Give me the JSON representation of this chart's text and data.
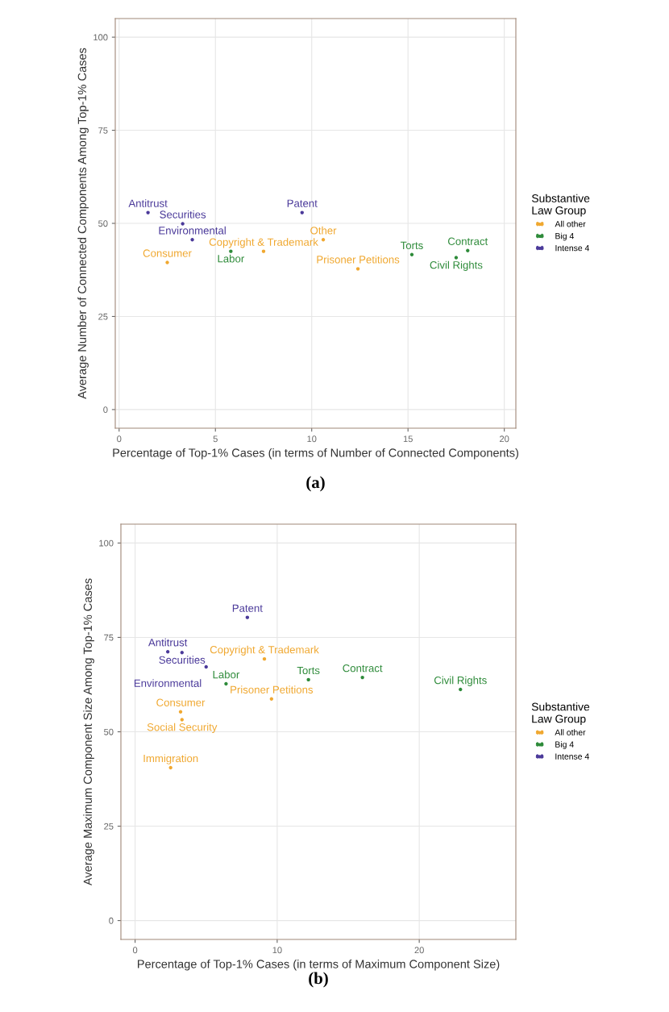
{
  "chart_data": [
    {
      "type": "scatter",
      "xlabel": "Percentage of Top-1% Cases (in terms of Number of Connected Components)",
      "ylabel": "Average Number of Connected Components Among Top-1% Cases",
      "legend_title": "Substantive\nLaw Group",
      "xlim": [
        -0.2,
        20.6
      ],
      "ylim": [
        -5,
        105
      ],
      "xticks": [
        0,
        5,
        10,
        15,
        20
      ],
      "yticks": [
        0,
        25,
        50,
        75,
        100
      ],
      "grid": true,
      "legend": "right",
      "marker": "circle",
      "annotations": [
        "(a)"
      ],
      "series": [
        {
          "name": "All other",
          "color": "#f0a830",
          "x": [
            10.6,
            7.5,
            2.5,
            12.4
          ],
          "values": [
            45.6,
            42.5,
            39.5,
            37.8
          ],
          "value_labels": [
            "Other",
            "Copyright & Trademark",
            "Consumer",
            "Prisoner Petitions"
          ]
        },
        {
          "name": "Big 4",
          "color": "#2e8b3a",
          "x": [
            5.8,
            15.2,
            18.1,
            17.5
          ],
          "values": [
            42.5,
            41.6,
            42.7,
            40.8
          ],
          "value_labels": [
            "Labor",
            "Torts",
            "Contract",
            "Civil Rights"
          ]
        },
        {
          "name": "Intense 4",
          "color": "#4b3a9a",
          "x": [
            1.5,
            3.3,
            3.8,
            9.5
          ],
          "values": [
            52.9,
            49.9,
            45.6,
            52.9
          ],
          "value_labels": [
            "Antitrust",
            "Securities",
            "Environmental",
            "Patent"
          ]
        }
      ]
    },
    {
      "type": "scatter",
      "xlabel": "Percentage of Top-1% Cases (in terms of Maximum Component Size)",
      "ylabel": "Average Maximum Component Size Among Top-1% Cases",
      "legend_title": "Substantive\nLaw Group",
      "xlim": [
        -1,
        26.8
      ],
      "ylim": [
        -5,
        105
      ],
      "xticks": [
        0,
        10,
        20
      ],
      "yticks": [
        0,
        25,
        50,
        75,
        100
      ],
      "grid": true,
      "legend": "right",
      "marker": "circle",
      "annotations": [
        "(b)"
      ],
      "series": [
        {
          "name": "All other",
          "color": "#f0a830",
          "x": [
            9.1,
            9.6,
            3.2,
            3.3,
            2.5
          ],
          "values": [
            69.3,
            58.7,
            55.3,
            53.2,
            40.5
          ],
          "value_labels": [
            "Copyright & Trademark",
            "Prisoner Petitions",
            "Consumer",
            "Social Security",
            "Immigration"
          ]
        },
        {
          "name": "Big 4",
          "color": "#2e8b3a",
          "x": [
            6.4,
            12.2,
            16.0,
            22.9
          ],
          "values": [
            62.7,
            63.8,
            64.4,
            61.2
          ],
          "value_labels": [
            "Labor",
            "Torts",
            "Contract",
            "Civil Rights"
          ]
        },
        {
          "name": "Intense 4",
          "color": "#4b3a9a",
          "x": [
            2.3,
            3.3,
            5.0,
            7.9
          ],
          "values": [
            71.2,
            71.0,
            67.2,
            80.3
          ],
          "value_labels": [
            "Antitrust",
            "Securities",
            "Environmental",
            "Patent"
          ]
        }
      ]
    }
  ]
}
